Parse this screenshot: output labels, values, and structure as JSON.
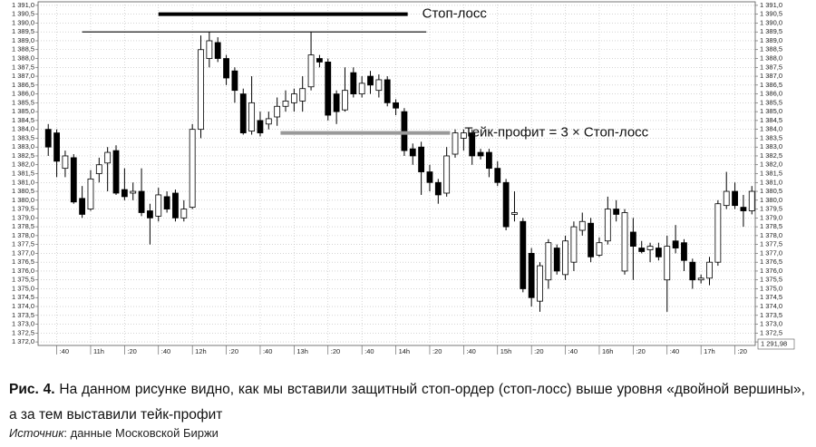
{
  "chart_data": {
    "type": "candlestick",
    "x": [
      635,
      640,
      645,
      650,
      655,
      660,
      665,
      670,
      675,
      680,
      685,
      690,
      695,
      700,
      705,
      710,
      715,
      720,
      725,
      730,
      735,
      740,
      745,
      750,
      755,
      760,
      765,
      770,
      775,
      780,
      785,
      790,
      795,
      800,
      805,
      810,
      815,
      820,
      825,
      830,
      835,
      840,
      845,
      850,
      855,
      860,
      865,
      870,
      875,
      880,
      885,
      890,
      895,
      900,
      905,
      910,
      915,
      920,
      925,
      930,
      935,
      940,
      945,
      950,
      955,
      960,
      965,
      970,
      975,
      980,
      985,
      990,
      995,
      1000,
      1005,
      1010,
      1015,
      1020,
      1025,
      1030,
      1035,
      1040,
      1045,
      1050
    ],
    "open": [
      1384.0,
      1383.8,
      1381.8,
      1382.4,
      1380.1,
      1379.5,
      1381.5,
      1382.1,
      1382.8,
      1380.6,
      1380.4,
      1380.5,
      1379.4,
      1379.1,
      1380.2,
      1380.4,
      1379.0,
      1379.6,
      1384.0,
      1388.0,
      1388.9,
      1388.0,
      1387.3,
      1386.0,
      1383.9,
      1384.5,
      1384.3,
      1384.7,
      1385.3,
      1385.5,
      1385.6,
      1386.4,
      1388.0,
      1387.8,
      1386.0,
      1385.1,
      1387.2,
      1386.0,
      1387.0,
      1386.2,
      1386.8,
      1385.5,
      1385.0,
      1382.9,
      1383.0,
      1381.6,
      1381.0,
      1380.4,
      1382.6,
      1383.5,
      1383.8,
      1382.7,
      1382.7,
      1381.8,
      1381.0,
      1379.2,
      1378.8,
      1377.0,
      1374.3,
      1375.5,
      1377.3,
      1375.8,
      1376.5,
      1378.3,
      1378.7,
      1376.9,
      1377.7,
      1379.5,
      1376.0,
      1378.2,
      1377.3,
      1377.2,
      1377.3,
      1375.5,
      1377.7,
      1377.6,
      1376.5,
      1375.5,
      1375.6,
      1376.5,
      1379.7,
      1380.5,
      1379.6,
      1379.4
    ],
    "high": [
      1384.3,
      1384.0,
      1382.8,
      1382.6,
      1380.8,
      1381.7,
      1382.4,
      1383.0,
      1383.1,
      1381.8,
      1381.0,
      1381.8,
      1379.8,
      1380.7,
      1380.5,
      1380.6,
      1380.0,
      1384.3,
      1389.3,
      1389.5,
      1389.2,
      1388.2,
      1387.5,
      1386.3,
      1387.0,
      1385.0,
      1385.0,
      1385.8,
      1386.2,
      1386.3,
      1387.0,
      1389.5,
      1388.2,
      1388.0,
      1386.2,
      1387.5,
      1387.5,
      1387.0,
      1387.3,
      1387.1,
      1387.0,
      1385.7,
      1385.2,
      1383.2,
      1383.3,
      1382.0,
      1381.2,
      1383.0,
      1384.0,
      1384.0,
      1384.0,
      1382.9,
      1382.9,
      1382.2,
      1381.2,
      1380.5,
      1379.0,
      1377.3,
      1376.5,
      1377.8,
      1377.5,
      1378.0,
      1378.8,
      1379.3,
      1379.0,
      1377.9,
      1380.2,
      1380.0,
      1379.5,
      1379.0,
      1377.7,
      1377.6,
      1377.6,
      1378.0,
      1378.6,
      1377.8,
      1376.7,
      1375.8,
      1376.8,
      1380.0,
      1381.6,
      1381.0,
      1380.3,
      1380.8
    ],
    "low": [
      1382.5,
      1381.3,
      1381.3,
      1379.8,
      1379.0,
      1379.4,
      1381.0,
      1380.5,
      1380.3,
      1380.0,
      1380.0,
      1379.1,
      1377.5,
      1378.8,
      1379.3,
      1378.8,
      1378.8,
      1379.5,
      1383.5,
      1387.5,
      1387.8,
      1386.5,
      1385.5,
      1383.7,
      1383.7,
      1383.6,
      1384.0,
      1384.2,
      1385.0,
      1385.0,
      1385.0,
      1386.2,
      1387.5,
      1384.5,
      1384.3,
      1385.0,
      1385.8,
      1385.8,
      1386.0,
      1385.8,
      1385.3,
      1384.8,
      1382.5,
      1382.0,
      1380.3,
      1380.5,
      1379.8,
      1380.2,
      1382.4,
      1382.8,
      1382.0,
      1382.3,
      1381.3,
      1380.8,
      1378.3,
      1378.8,
      1374.8,
      1374.0,
      1373.7,
      1375.0,
      1375.8,
      1375.5,
      1376.0,
      1378.0,
      1376.5,
      1376.8,
      1377.5,
      1378.8,
      1375.8,
      1375.5,
      1377.0,
      1376.5,
      1376.6,
      1373.7,
      1377.0,
      1376.0,
      1375.0,
      1375.3,
      1375.2,
      1376.3,
      1379.5,
      1379.5,
      1378.5,
      1379.2
    ],
    "close": [
      1383.0,
      1382.2,
      1382.5,
      1379.9,
      1379.2,
      1381.2,
      1382.0,
      1382.7,
      1380.4,
      1380.2,
      1380.5,
      1379.3,
      1379.0,
      1380.3,
      1379.5,
      1379.0,
      1379.5,
      1384.0,
      1388.5,
      1389.0,
      1388.0,
      1386.9,
      1386.2,
      1383.8,
      1385.5,
      1383.8,
      1384.6,
      1385.3,
      1385.6,
      1386.0,
      1386.3,
      1388.2,
      1387.8,
      1384.8,
      1385.0,
      1386.2,
      1386.0,
      1386.6,
      1386.5,
      1386.8,
      1385.5,
      1385.2,
      1382.8,
      1382.5,
      1381.6,
      1381.0,
      1380.3,
      1382.5,
      1383.8,
      1383.8,
      1382.5,
      1382.5,
      1381.8,
      1381.0,
      1378.5,
      1379.3,
      1375.0,
      1374.5,
      1376.3,
      1377.6,
      1376.0,
      1377.7,
      1378.5,
      1378.8,
      1376.8,
      1377.6,
      1379.5,
      1379.2,
      1379.3,
      1377.4,
      1377.1,
      1377.4,
      1376.8,
      1377.4,
      1377.3,
      1376.6,
      1375.5,
      1375.6,
      1376.5,
      1379.8,
      1380.5,
      1379.7,
      1379.4,
      1380.5
    ],
    "up_color": "#ffffff",
    "down_color": "#000000",
    "xlim": [
      629,
      1052
    ],
    "xticks": [
      {
        "value": 640,
        "label": ":40"
      },
      {
        "value": 660,
        "label": "11h"
      },
      {
        "value": 680,
        "label": ":20"
      },
      {
        "value": 700,
        "label": ":40"
      },
      {
        "value": 720,
        "label": "12h"
      },
      {
        "value": 740,
        "label": ":20"
      },
      {
        "value": 760,
        "label": ":40"
      },
      {
        "value": 780,
        "label": "13h"
      },
      {
        "value": 800,
        "label": ":20"
      },
      {
        "value": 820,
        "label": ":40"
      },
      {
        "value": 840,
        "label": "14h"
      },
      {
        "value": 860,
        "label": ":20"
      },
      {
        "value": 880,
        "label": ":40"
      },
      {
        "value": 900,
        "label": "15h"
      },
      {
        "value": 920,
        "label": ":20"
      },
      {
        "value": 940,
        "label": ":40"
      },
      {
        "value": 960,
        "label": "16h"
      },
      {
        "value": 980,
        "label": ":20"
      },
      {
        "value": 1000,
        "label": ":40"
      },
      {
        "value": 1020,
        "label": "17h"
      },
      {
        "value": 1040,
        "label": ":20"
      }
    ],
    "ylim": [
      1371.8,
      1391.2
    ],
    "yticks": [
      {
        "value": 1372.0,
        "label": "1 372,0"
      },
      {
        "value": 1372.5,
        "label": "1 372,5"
      },
      {
        "value": 1373.0,
        "label": "1 373,0"
      },
      {
        "value": 1373.5,
        "label": "1 373,5"
      },
      {
        "value": 1374.0,
        "label": "1 374,0"
      },
      {
        "value": 1374.5,
        "label": "1 374,5"
      },
      {
        "value": 1375.0,
        "label": "1 375,0"
      },
      {
        "value": 1375.5,
        "label": "1 375,5"
      },
      {
        "value": 1376.0,
        "label": "1 376,0"
      },
      {
        "value": 1376.5,
        "label": "1 376,5"
      },
      {
        "value": 1377.0,
        "label": "1 377,0"
      },
      {
        "value": 1377.5,
        "label": "1 377,5"
      },
      {
        "value": 1378.0,
        "label": "1 378,0"
      },
      {
        "value": 1378.5,
        "label": "1 378,5"
      },
      {
        "value": 1379.0,
        "label": "1 379,0"
      },
      {
        "value": 1379.5,
        "label": "1 379,5"
      },
      {
        "value": 1380.0,
        "label": "1 380,0"
      },
      {
        "value": 1380.5,
        "label": "1 380,5"
      },
      {
        "value": 1381.0,
        "label": "1 381,0"
      },
      {
        "value": 1381.5,
        "label": "1 381,5"
      },
      {
        "value": 1382.0,
        "label": "1 382,0"
      },
      {
        "value": 1382.5,
        "label": "1 382,5"
      },
      {
        "value": 1383.0,
        "label": "1 383,0"
      },
      {
        "value": 1383.5,
        "label": "1 383,5"
      },
      {
        "value": 1384.0,
        "label": "1 384,0"
      },
      {
        "value": 1384.5,
        "label": "1 384,5"
      },
      {
        "value": 1385.0,
        "label": "1 385,0"
      },
      {
        "value": 1385.5,
        "label": "1 385,5"
      },
      {
        "value": 1386.0,
        "label": "1 386,0"
      },
      {
        "value": 1386.5,
        "label": "1 386,5"
      },
      {
        "value": 1387.0,
        "label": "1 387,0"
      },
      {
        "value": 1387.5,
        "label": "1 387,5"
      },
      {
        "value": 1388.0,
        "label": "1 388,0"
      },
      {
        "value": 1388.5,
        "label": "1 388,5"
      },
      {
        "value": 1389.0,
        "label": "1 389,0"
      },
      {
        "value": 1389.5,
        "label": "1 389,5"
      },
      {
        "value": 1390.0,
        "label": "1 390,0"
      },
      {
        "value": 1390.5,
        "label": "1 390,5"
      },
      {
        "value": 1391.0,
        "label": "1 391,0"
      }
    ],
    "grid": true,
    "price_box": "1 291,98",
    "levels": [
      {
        "label": "Стоп-лосс",
        "value": 1390.5,
        "x": [
          700,
          847
        ],
        "color": "#000000",
        "thick": true
      },
      {
        "value": 1389.5,
        "x": [
          655,
          858
        ],
        "color": "#000000",
        "thick": false
      },
      {
        "label": "Тейк-профит = 3 × Стоп-лосс",
        "value": 1383.8,
        "x": [
          772,
          872
        ],
        "color": "#999999",
        "thick": true
      }
    ]
  },
  "caption": {
    "label": "Рис. 4.",
    "text": "На данном рисунке видно, как мы вставили защитный стоп-ордер (стоп-лосс) выше уровня «двойной вершины», а за тем выставили тейк-профит"
  },
  "source": {
    "label": "Источник",
    "text": ": данные Московской Биржи"
  }
}
